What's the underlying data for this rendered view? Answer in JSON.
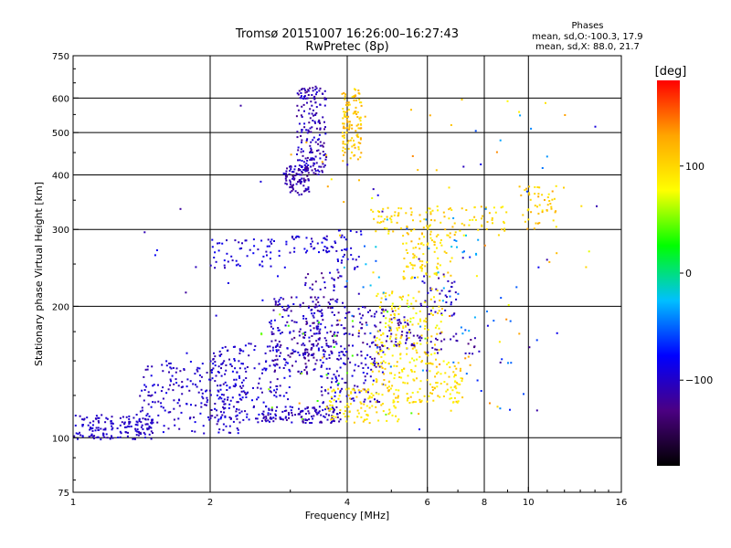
{
  "chart_data": {
    "type": "scatter",
    "title": "Tromsø 20151007 16:26:00–16:27:43",
    "subtitle": "RwPretec (8p)",
    "xlabel": "Frequency [MHz]",
    "ylabel": "Stationary phase Virtual Height [km]",
    "xscale": "log",
    "yscale": "log",
    "xlim": [
      1,
      16
    ],
    "ylim": [
      75,
      750
    ],
    "x_ticks": [
      "1",
      "2",
      "4",
      "6",
      "8",
      "10",
      "16"
    ],
    "x_tick_values": [
      1,
      2,
      4,
      6,
      8,
      10,
      16
    ],
    "x_grid": [
      2,
      4,
      6,
      8,
      10
    ],
    "y_ticks": [
      "75",
      "100",
      "200",
      "300",
      "400",
      "500",
      "600",
      "750"
    ],
    "y_tick_values": [
      75,
      100,
      200,
      300,
      400,
      500,
      600,
      750
    ],
    "y_grid": [
      100,
      200,
      300,
      400,
      500,
      600
    ],
    "grid": true,
    "legend": {
      "title": "Phases",
      "lines": [
        "mean, sd,O:-100.3, 17.9",
        "mean, sd,X:  88.0, 21.7"
      ],
      "placement": "top-right"
    },
    "colorbar": {
      "label": "[deg]",
      "min": -180,
      "max": 180,
      "ticks": [
        "100",
        "0",
        "-100"
      ],
      "tick_values": [
        100,
        0,
        -100
      ],
      "colors": [
        "#000000",
        "#4b0082",
        "#0000ff",
        "#00bfff",
        "#00ff00",
        "#ffff00",
        "#ffa500",
        "#ff0000"
      ]
    },
    "series": [
      {
        "clusters": [
          {
            "x": [
              1.0,
              1.5
            ],
            "y": [
              99,
              113
            ],
            "n": 160,
            "phase": [
              -110,
              -90
            ]
          },
          {
            "x": [
              1.4,
              2.4
            ],
            "y": [
              102,
              150
            ],
            "n": 220,
            "phase": [
              -115,
              -85
            ]
          },
          {
            "x": [
              2.0,
              3.0
            ],
            "y": [
              110,
              165
            ],
            "n": 180,
            "phase": [
              -115,
              -80
            ]
          },
          {
            "x": [
              2.6,
              3.9
            ],
            "y": [
              108,
              118
            ],
            "n": 120,
            "phase": [
              -120,
              -90
            ]
          },
          {
            "x": [
              2.0,
              3.0
            ],
            "y": [
              245,
              285
            ],
            "n": 60,
            "phase": [
              -110,
              -80
            ]
          },
          {
            "x": [
              3.0,
              3.8
            ],
            "y": [
              265,
              290
            ],
            "n": 40,
            "phase": [
              -110,
              -80
            ]
          },
          {
            "x": [
              2.9,
              3.3
            ],
            "y": [
              360,
              420
            ],
            "n": 100,
            "phase": [
              -125,
              -95
            ]
          },
          {
            "x": [
              3.1,
              3.6
            ],
            "y": [
              400,
              640
            ],
            "n": 180,
            "phase": [
              -125,
              -90
            ]
          },
          {
            "x": [
              2.7,
              3.5
            ],
            "y": [
              140,
              210
            ],
            "n": 150,
            "phase": [
              -130,
              -85
            ]
          },
          {
            "x": [
              3.2,
              4.0
            ],
            "y": [
              150,
              240
            ],
            "n": 140,
            "phase": [
              -130,
              -85
            ]
          },
          {
            "x": [
              3.5,
              4.8
            ],
            "y": [
              120,
              160
            ],
            "n": 110,
            "phase": [
              -120,
              -80
            ]
          },
          {
            "x": [
              4.0,
              5.5
            ],
            "y": [
              160,
              200
            ],
            "n": 90,
            "phase": [
              -130,
              -90
            ]
          },
          {
            "x": [
              5.5,
              7.8
            ],
            "y": [
              155,
              175
            ],
            "n": 40,
            "phase": [
              -130,
              -100
            ]
          },
          {
            "x": [
              3.8,
              4.3
            ],
            "y": [
              240,
              300
            ],
            "n": 30,
            "phase": [
              -110,
              -80
            ]
          },
          {
            "x": [
              5.8,
              7.0
            ],
            "y": [
              190,
              240
            ],
            "n": 40,
            "phase": [
              -120,
              -90
            ]
          },
          {
            "x": [
              1.4,
              14.5
            ],
            "y": [
              100,
              620
            ],
            "n": 40,
            "phase": [
              -120,
              -80
            ]
          }
        ]
      },
      {
        "clusters": [
          {
            "x": [
              3.9,
              4.3
            ],
            "y": [
              430,
              630
            ],
            "n": 120,
            "phase": [
              90,
              130
            ]
          },
          {
            "x": [
              3.6,
              5.2
            ],
            "y": [
              108,
              130
            ],
            "n": 100,
            "phase": [
              80,
              110
            ]
          },
          {
            "x": [
              4.5,
              7.2
            ],
            "y": [
              120,
              150
            ],
            "n": 160,
            "phase": [
              75,
              115
            ]
          },
          {
            "x": [
              4.6,
              6.5
            ],
            "y": [
              150,
              220
            ],
            "n": 150,
            "phase": [
              70,
              115
            ]
          },
          {
            "x": [
              5.3,
              6.8
            ],
            "y": [
              230,
              290
            ],
            "n": 80,
            "phase": [
              80,
              115
            ]
          },
          {
            "x": [
              4.5,
              9.0
            ],
            "y": [
              290,
              340
            ],
            "n": 120,
            "phase": [
              80,
              120
            ]
          },
          {
            "x": [
              9.5,
              12.0
            ],
            "y": [
              300,
              380
            ],
            "n": 50,
            "phase": [
              80,
              130
            ]
          },
          {
            "x": [
              3.0,
              14.0
            ],
            "y": [
              110,
              600
            ],
            "n": 60,
            "phase": [
              70,
              140
            ]
          }
        ]
      },
      {
        "clusters": [
          {
            "x": [
              3.8,
              7.5
            ],
            "y": [
              140,
              320
            ],
            "n": 40,
            "phase": [
              -60,
              -20
            ]
          },
          {
            "x": [
              7.0,
              11.0
            ],
            "y": [
              110,
              600
            ],
            "n": 30,
            "phase": [
              -70,
              -30
            ]
          },
          {
            "x": [
              2.5,
              6.0
            ],
            "y": [
              110,
              200
            ],
            "n": 25,
            "phase": [
              30,
              60
            ]
          }
        ]
      }
    ]
  }
}
